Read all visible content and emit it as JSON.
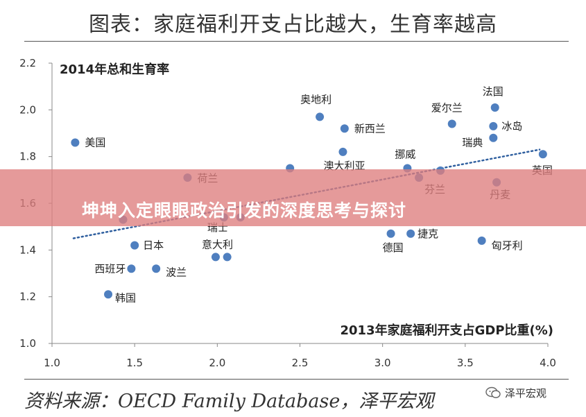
{
  "header": {
    "title": "图表：家庭福利开支占比越大，生育率越高"
  },
  "banner": {
    "text": "坤坤入定眼眼政治引发的深度思考与探讨"
  },
  "footer": {
    "source": "资料来源：OECD Family Database，泽平宏观",
    "watermark": "泽平宏观"
  },
  "colors": {
    "point": "#4f7fbf",
    "trend": "#2f5f9f",
    "banner": "#de7d7d"
  },
  "chart_data": {
    "type": "scatter",
    "title": "",
    "xlabel": "2013年家庭福利开支占GDP比重(%)",
    "ylabel": "2014年总和生育率",
    "xlim": [
      1.0,
      4.0
    ],
    "ylim": [
      1.0,
      2.2
    ],
    "xticks": [
      "1.0",
      "1.5",
      "2.0",
      "2.5",
      "3.0",
      "3.5",
      "4.0"
    ],
    "yticks": [
      "1.0",
      "1.2",
      "1.4",
      "1.6",
      "1.8",
      "2.0",
      "2.2"
    ],
    "grid": false,
    "trendline": {
      "style": "dotted",
      "from": [
        1.13,
        1.45
      ],
      "to": [
        3.95,
        1.83
      ]
    },
    "points": [
      {
        "label": "美国",
        "x": 1.14,
        "y": 1.86
      },
      {
        "label": "",
        "x": 1.43,
        "y": 1.53
      },
      {
        "label": "日本",
        "x": 1.5,
        "y": 1.42
      },
      {
        "label": "西班牙",
        "x": 1.48,
        "y": 1.32
      },
      {
        "label": "波兰",
        "x": 1.63,
        "y": 1.32
      },
      {
        "label": "韩国",
        "x": 1.34,
        "y": 1.21
      },
      {
        "label": "荷兰",
        "x": 1.82,
        "y": 1.71
      },
      {
        "label": "瑞士",
        "x": 2.04,
        "y": 1.54
      },
      {
        "label": "",
        "x": 2.14,
        "y": 1.54
      },
      {
        "label": "意大利",
        "x": 1.99,
        "y": 1.37
      },
      {
        "label": "",
        "x": 2.06,
        "y": 1.37
      },
      {
        "label": "",
        "x": 2.44,
        "y": 1.75
      },
      {
        "label": "奥地利",
        "x": 2.62,
        "y": 1.97
      },
      {
        "label": "新西兰",
        "x": 2.77,
        "y": 1.92
      },
      {
        "label": "澳大利亚",
        "x": 2.76,
        "y": 1.82
      },
      {
        "label": "挪威",
        "x": 3.15,
        "y": 1.75
      },
      {
        "label": "芬兰",
        "x": 3.22,
        "y": 1.71
      },
      {
        "label": "",
        "x": 3.35,
        "y": 1.74
      },
      {
        "label": "德国",
        "x": 3.05,
        "y": 1.47
      },
      {
        "label": "捷克",
        "x": 3.17,
        "y": 1.47
      },
      {
        "label": "爱尔兰",
        "x": 3.42,
        "y": 1.94
      },
      {
        "label": "法国",
        "x": 3.68,
        "y": 2.01
      },
      {
        "label": "冰岛",
        "x": 3.67,
        "y": 1.93
      },
      {
        "label": "瑞典",
        "x": 3.67,
        "y": 1.88
      },
      {
        "label": "英国",
        "x": 3.97,
        "y": 1.81
      },
      {
        "label": "丹麦",
        "x": 3.69,
        "y": 1.69
      },
      {
        "label": "匈牙利",
        "x": 3.6,
        "y": 1.44
      }
    ]
  }
}
